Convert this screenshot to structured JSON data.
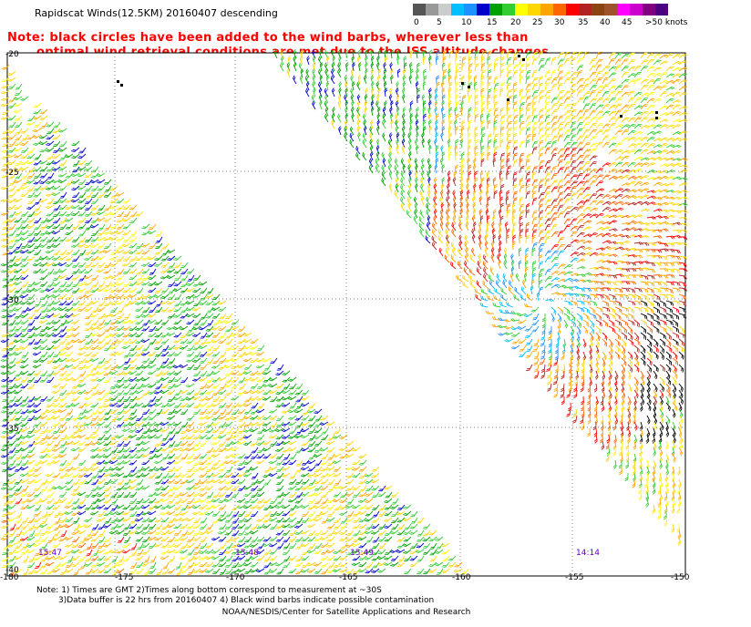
{
  "title": "Rapidscat Winds(12.5KM) 20160407 descending",
  "colorbar": {
    "colors": [
      "#555555",
      "#999999",
      "#cccccc",
      "#00bfff",
      "#1e90ff",
      "#0000cd",
      "#00a000",
      "#32cd32",
      "#ffff00",
      "#ffd700",
      "#ffa500",
      "#ff6600",
      "#ff0000",
      "#b22222",
      "#8b4513",
      "#a0522d",
      "#ff00ff",
      "#cc00cc",
      "#800080",
      "#4b0082"
    ],
    "labels": [
      "0",
      "5",
      "10",
      "15",
      "20",
      "25",
      "30",
      "35",
      "40",
      "45",
      ">50 knots"
    ]
  },
  "note": {
    "line1": "Note: black circles have been added to the wind barbs, wherever less than",
    "line2": "optimal wind retrieval conditions are met due to the ISS altitude changes."
  },
  "axes": {
    "y_labels": [
      "-20",
      "-25",
      "-30",
      "-35",
      "-40"
    ],
    "x_labels": [
      "-180",
      "-175",
      "-170",
      "-165",
      "-160",
      "-155",
      "-150"
    ]
  },
  "pass_times": [
    {
      "label": "15:47",
      "color": "#6600cc"
    },
    {
      "label": "15:48",
      "color": "#6600cc"
    },
    {
      "label": "15:49",
      "color": "#6600cc"
    },
    {
      "label": "14:14",
      "color": "#6600cc"
    }
  ],
  "footer": {
    "line1": "Note: 1) Times are GMT 2)Times along bottom correspond to measurement at ~30S",
    "line2": "3)Data buffer is 22 hrs from 20160407 4) Black wind barbs indicate possible contamination",
    "line3": "NOAA/NESDIS/Center for Satellite Applications and Research"
  }
}
